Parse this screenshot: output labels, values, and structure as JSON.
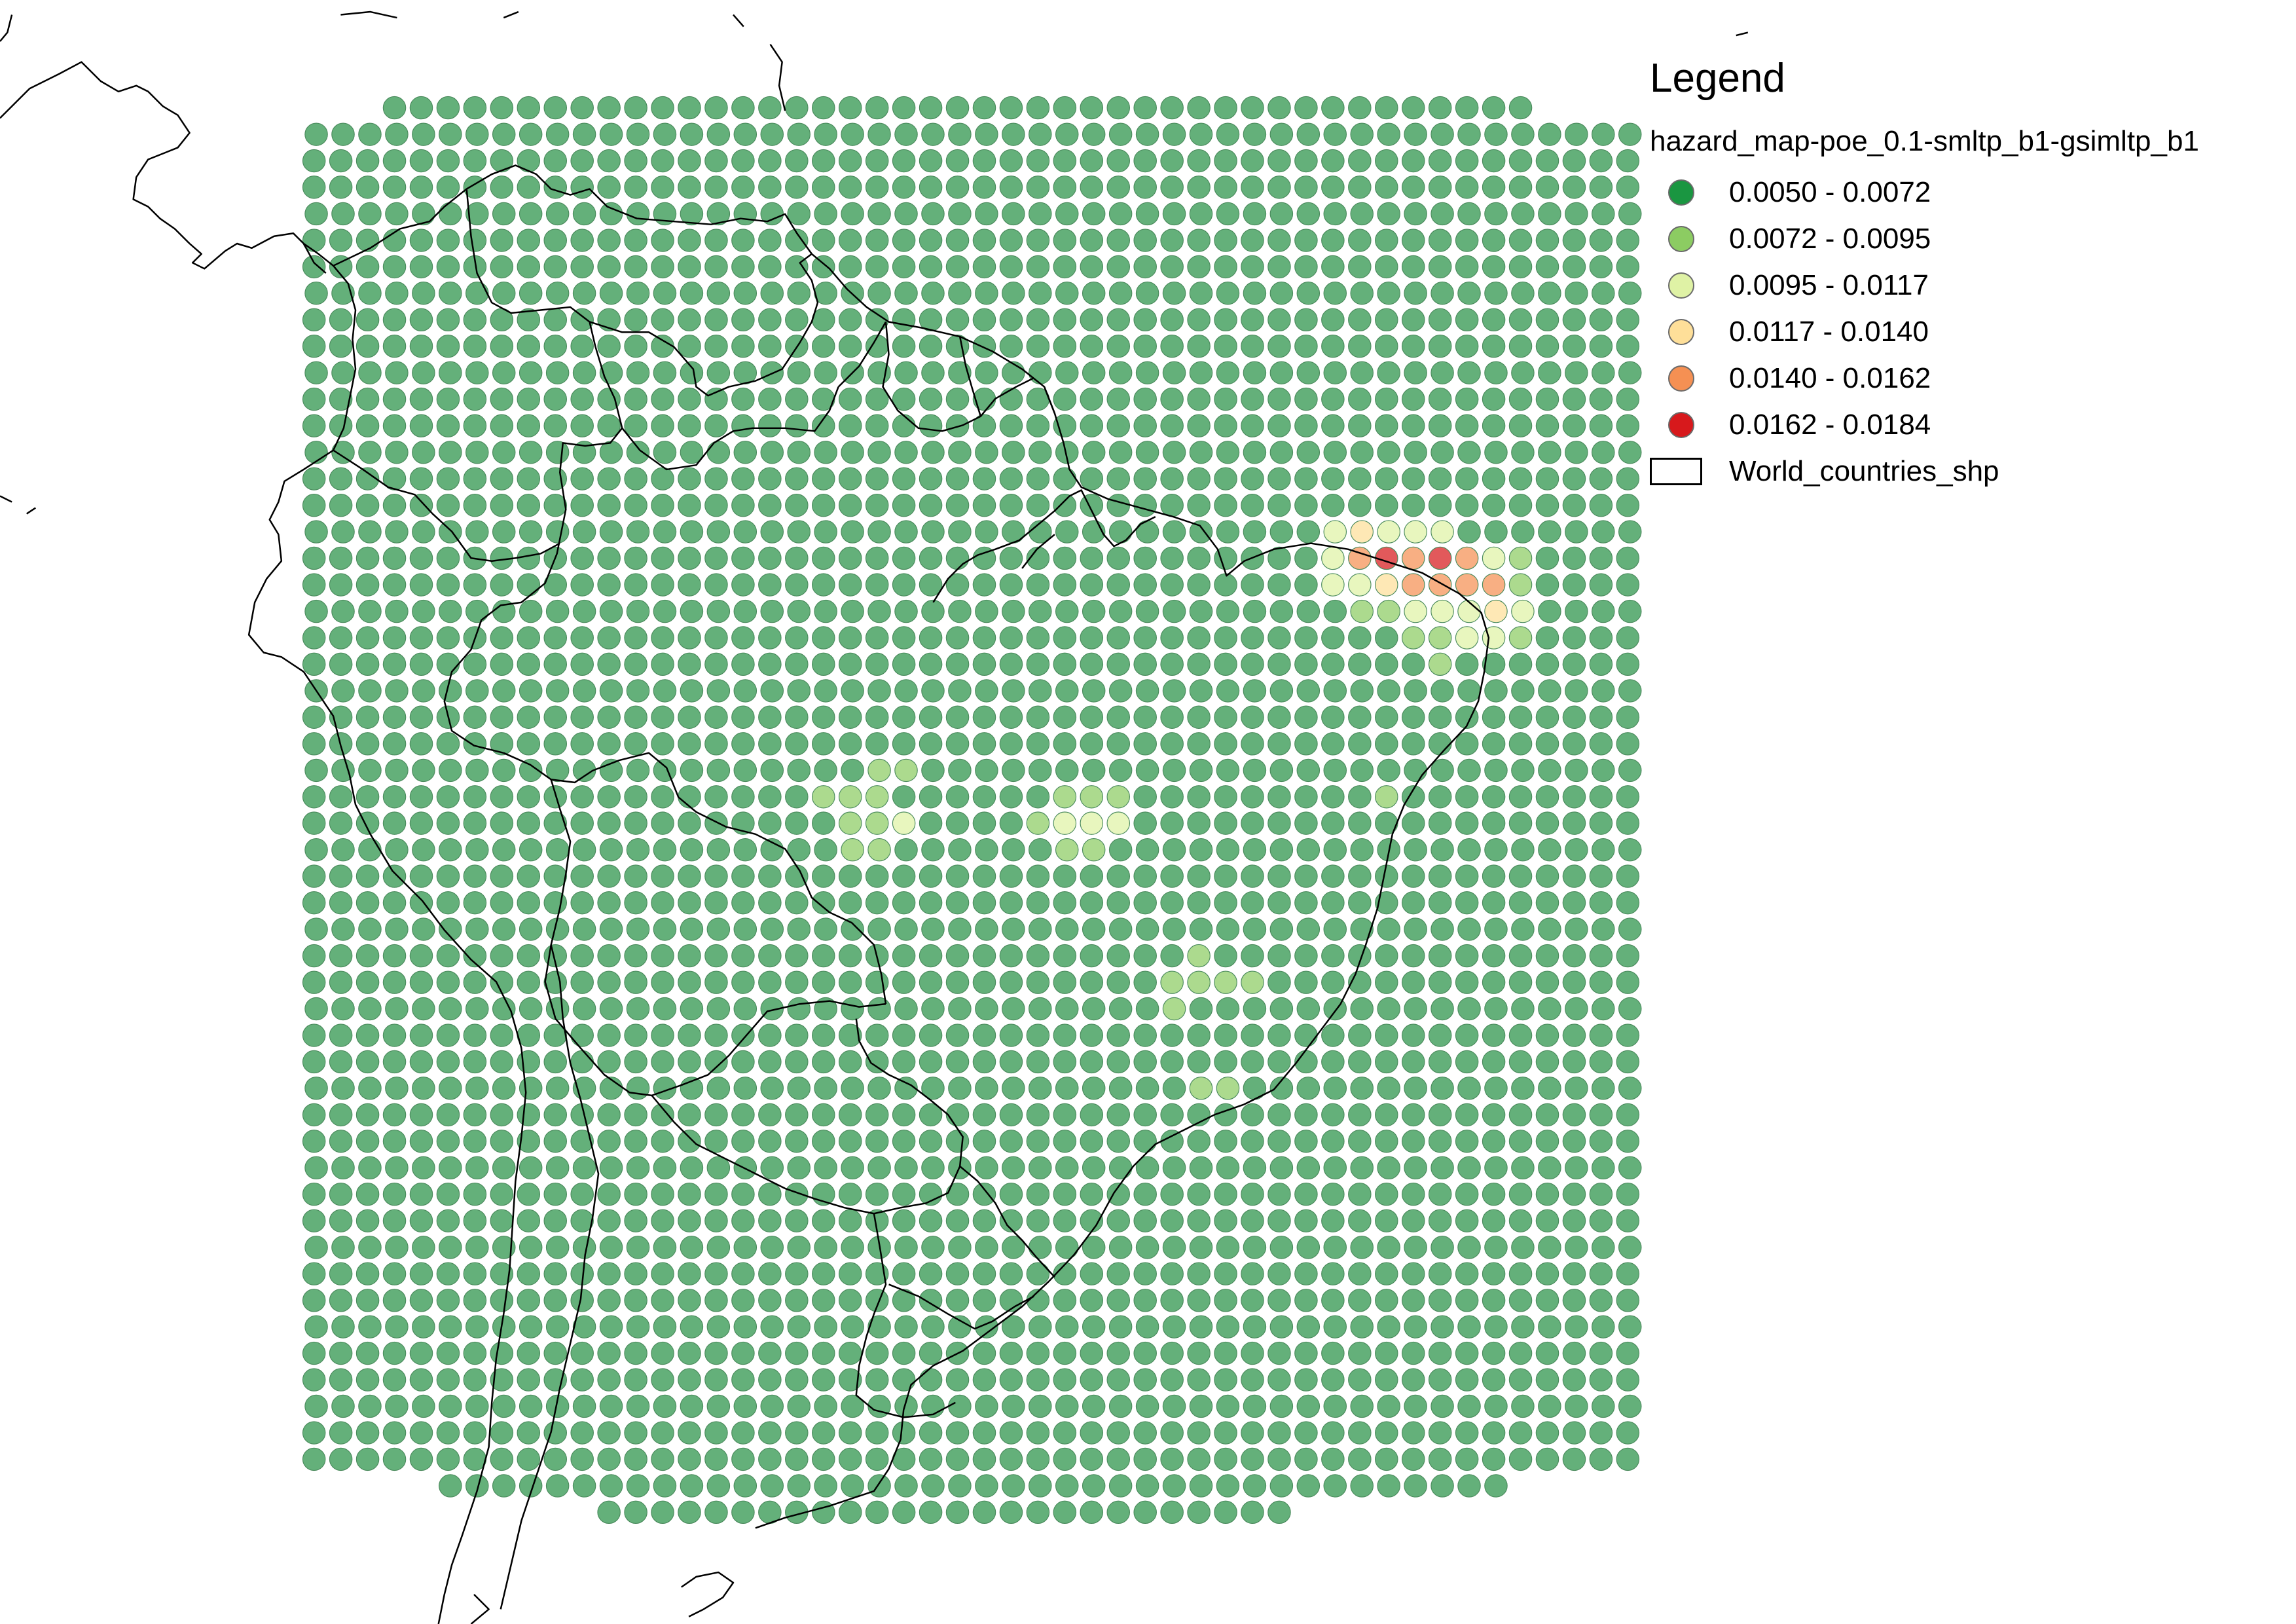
{
  "legend": {
    "title": "Legend",
    "layer_name": "hazard_map-poe_0.1-smltp_b1-gsimltp_b1",
    "classes": [
      {
        "label": "0.0050 - 0.0072",
        "color": "#1a9641"
      },
      {
        "label": "0.0072 - 0.0095",
        "color": "#8ccc62"
      },
      {
        "label": "0.0095 - 0.0117",
        "color": "#dff2a5"
      },
      {
        "label": "0.0117 - 0.0140",
        "color": "#fedf99"
      },
      {
        "label": "0.0140 - 0.0162",
        "color": "#f59053"
      },
      {
        "label": "0.0162 - 0.0184",
        "color": "#d7191c"
      }
    ],
    "boundary_layer": "World_countries_shp"
  },
  "map": {
    "point_color": "#64b07a",
    "outline_color": "#000000"
  }
}
